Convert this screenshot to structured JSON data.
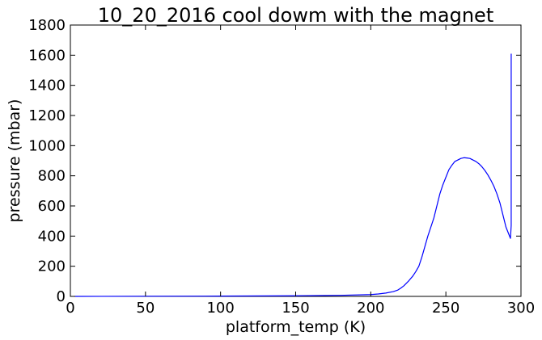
{
  "chart_data": {
    "type": "line",
    "title": "10_20_2016 cool dowm with the magnet",
    "xlabel": "platform_temp (K)",
    "ylabel": "pressure (mbar)",
    "xlim": [
      0,
      300
    ],
    "ylim": [
      0,
      1800
    ],
    "xticks": [
      0,
      50,
      100,
      150,
      200,
      250,
      300
    ],
    "yticks": [
      0,
      200,
      400,
      600,
      800,
      1000,
      1200,
      1400,
      1600,
      1800
    ],
    "grid": false,
    "legend": "none",
    "series": [
      {
        "color": "#0000ff",
        "x": [
          3,
          50,
          100,
          150,
          180,
          200,
          205,
          210,
          215,
          218,
          220,
          222,
          225,
          228,
          230,
          232,
          234,
          236,
          238,
          240,
          242,
          244,
          246,
          248,
          250,
          252,
          254,
          256,
          258,
          260,
          262,
          264,
          266,
          268,
          270,
          272,
          274,
          276,
          278,
          280,
          282,
          284,
          286,
          288,
          290,
          292,
          293,
          293.5,
          293.5
        ],
        "y": [
          0,
          1,
          2,
          4,
          7,
          12,
          16,
          22,
          32,
          42,
          55,
          70,
          100,
          135,
          165,
          200,
          260,
          330,
          400,
          460,
          520,
          600,
          680,
          740,
          790,
          840,
          870,
          895,
          905,
          915,
          920,
          918,
          915,
          905,
          895,
          880,
          860,
          835,
          805,
          770,
          730,
          680,
          620,
          540,
          460,
          410,
          385,
          470,
          1610
        ]
      }
    ]
  }
}
